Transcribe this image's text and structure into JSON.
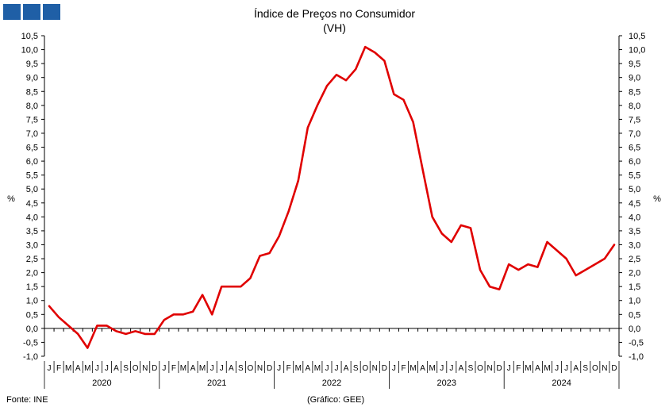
{
  "logo": {
    "icon": "gee-logo-icon",
    "color": "#1f5fa6"
  },
  "chart_data": {
    "type": "line",
    "title": "Índice de Preços no Consumidor",
    "subtitle": "(VH)",
    "ylabel_left": "%",
    "ylabel_right": "%",
    "ylim": [
      -1.0,
      10.5
    ],
    "yticks": [
      "-1,0",
      "-0,5",
      "0,0",
      "0,5",
      "1,0",
      "1,5",
      "2,0",
      "2,5",
      "3,0",
      "3,5",
      "4,0",
      "4,5",
      "5,0",
      "5,5",
      "6,0",
      "6,5",
      "7,0",
      "7,5",
      "8,0",
      "8,5",
      "9,0",
      "9,5",
      "10,0",
      "10,5"
    ],
    "month_labels": [
      "J",
      "F",
      "M",
      "A",
      "M",
      "J",
      "J",
      "A",
      "S",
      "O",
      "N",
      "D"
    ],
    "years": [
      "2020",
      "2021",
      "2022",
      "2023",
      "2024"
    ],
    "grid": false,
    "series": [
      {
        "color": "#e00000",
        "values": [
          0.8,
          0.4,
          0.1,
          -0.2,
          -0.7,
          0.1,
          0.1,
          -0.1,
          -0.2,
          -0.1,
          -0.2,
          -0.2,
          0.3,
          0.5,
          0.5,
          0.6,
          1.2,
          0.5,
          1.5,
          1.5,
          1.5,
          1.8,
          2.6,
          2.7,
          3.3,
          4.2,
          5.3,
          7.2,
          8.0,
          8.7,
          9.1,
          8.9,
          9.3,
          10.1,
          9.9,
          9.6,
          8.4,
          8.2,
          7.4,
          5.7,
          4.0,
          3.4,
          3.1,
          3.7,
          3.6,
          2.1,
          1.5,
          1.4,
          2.3,
          2.1,
          2.3,
          2.2,
          3.1,
          2.8,
          2.5,
          1.9,
          2.1,
          2.3,
          2.5,
          3.0
        ]
      }
    ]
  },
  "footer": {
    "source": "Fonte: INE",
    "credit": "(Gráfico: GEE)"
  }
}
